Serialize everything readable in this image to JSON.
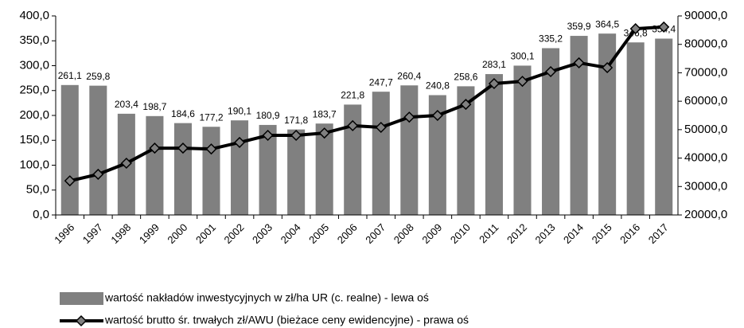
{
  "chart_data": {
    "type": "combo",
    "categories": [
      "1996",
      "1997",
      "1998",
      "1999",
      "2000",
      "2001",
      "2002",
      "2003",
      "2004",
      "2005",
      "2006",
      "2007",
      "2008",
      "2009",
      "2010",
      "2011",
      "2012",
      "2013",
      "2014",
      "2015",
      "2016",
      "2017"
    ],
    "series": [
      {
        "name": "wartość nakładów inwestycyjnych w zł/ha UR (c. realne) - lewa oś",
        "type": "bar",
        "color": "#808080",
        "values": [
          261.1,
          259.8,
          203.4,
          198.7,
          184.6,
          177.2,
          190.1,
          180.9,
          171.8,
          183.7,
          221.8,
          247.7,
          260.4,
          240.8,
          258.6,
          283.1,
          300.1,
          335.2,
          359.9,
          364.5,
          346.8,
          354.4
        ],
        "value_labels": [
          "261,1",
          "259,8",
          "203,4",
          "198,7",
          "184,6",
          "177,2",
          "190,1",
          "180,9",
          "171,8",
          "183,7",
          "221,8",
          "247,7",
          "260,4",
          "240,8",
          "258,6",
          "283,1",
          "300,1",
          "335,2",
          "359,9",
          "364,5",
          "346,8",
          "354,4"
        ]
      },
      {
        "name": "wartość brutto śr. trwałych zł/AWU (bieżace ceny ewidencyjne)  - prawa oś",
        "type": "line",
        "axis": "y2",
        "color": "#000000",
        "marker_color": "#808080",
        "values": [
          32000,
          34300,
          38200,
          43500,
          43500,
          43200,
          45500,
          48000,
          48000,
          48800,
          51400,
          50800,
          54400,
          55000,
          58900,
          66200,
          67000,
          70400,
          73500,
          71800,
          85500,
          86100
        ]
      }
    ],
    "ylim": [
      0,
      400
    ],
    "yticks": [
      {
        "value": 0,
        "label": "0,0"
      },
      {
        "value": 50,
        "label": "50,0"
      },
      {
        "value": 100,
        "label": "100,0"
      },
      {
        "value": 150,
        "label": "150,0"
      },
      {
        "value": 200,
        "label": "200,0"
      },
      {
        "value": 250,
        "label": "250,0"
      },
      {
        "value": 300,
        "label": "300,0"
      },
      {
        "value": 350,
        "label": "350,0"
      },
      {
        "value": 400,
        "label": "400,0"
      }
    ],
    "y2lim": [
      20000,
      90000
    ],
    "y2ticks": [
      {
        "value": 20000,
        "label": "20000,0"
      },
      {
        "value": 30000,
        "label": "30000,0"
      },
      {
        "value": 40000,
        "label": "40000,0"
      },
      {
        "value": 50000,
        "label": "50000,0"
      },
      {
        "value": 60000,
        "label": "60000,0"
      },
      {
        "value": 70000,
        "label": "70000,0"
      },
      {
        "value": 80000,
        "label": "80000,0"
      },
      {
        "value": 90000,
        "label": "90000,0"
      }
    ],
    "grid": false
  }
}
